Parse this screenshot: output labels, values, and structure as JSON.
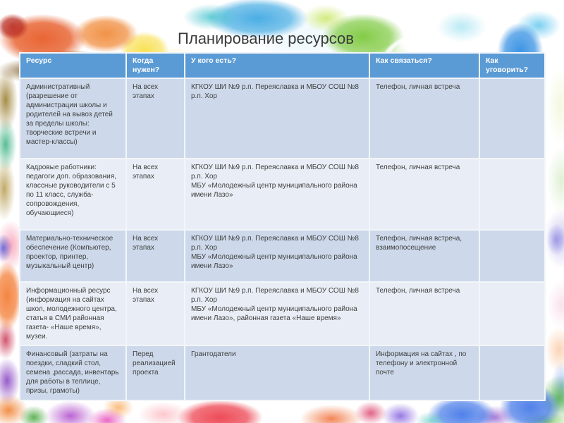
{
  "title": "Планирование ресурсов",
  "colors": {
    "header_bg": "#5b9bd5",
    "header_text": "#ffffff",
    "row_odd": "#cdd9ea",
    "row_even": "#e9eef6",
    "body_text": "#3f3f3f"
  },
  "table": {
    "columns": [
      "Ресурс",
      "Когда нужен?",
      "У кого есть?",
      "Как связаться?",
      "Как уговорить?"
    ],
    "rows": [
      {
        "resource": [
          "Административный (разрешение от администрации школы и родителей на вывоз детей за пределы школы: творческие встречи и мастер-классы)"
        ],
        "when": [
          "На всех этапах"
        ],
        "who": [
          "КГКОУ ШИ №9 р.п. Переяславка и МБОУ СОШ №8 р.п. Хор"
        ],
        "contact": [
          "Телефон, личная встреча"
        ],
        "persuade": []
      },
      {
        "resource": [
          "Кадровые работники: педагоги доп. образования, классные руководители с 5 по 11 класс, служба-сопровождения, обучающиеся)"
        ],
        "when": [
          "На всех этапах"
        ],
        "who": [
          "КГКОУ ШИ №9 р.п. Переяславка и МБОУ СОШ №8 р.п. Хор",
          "МБУ «Молодежный центр муниципального района имени Лазо»"
        ],
        "contact": [
          "Телефон, личная встреча"
        ],
        "persuade": []
      },
      {
        "resource": [
          "Материально-техническое обеспечение (Компьютер, проектор, принтер, музыкальный центр)"
        ],
        "when": [
          "На всех этапах"
        ],
        "who": [
          "КГКОУ ШИ №9 р.п. Переяславка и МБОУ СОШ №8 р.п. Хор",
          "МБУ «Молодежный центр муниципального района имени Лазо»"
        ],
        "contact": [
          "Телефон, личная встреча, взаимопосещение"
        ],
        "persuade": []
      },
      {
        "resource": [
          "Информационный ресурс (информация на сайтах школ, молодежного центра, статья в СМИ районная газета- «Наше время», музеи."
        ],
        "when": [
          "На всех этапах"
        ],
        "who": [
          "КГКОУ ШИ №9 р.п. Переяславка и МБОУ СОШ №8 р.п. Хор",
          "МБУ «Молодежный центр муниципального района имени Лазо», районная газета «Наше время»"
        ],
        "contact": [
          "Телефон, личная встреча"
        ],
        "persuade": []
      },
      {
        "resource": [
          "Финансовый (затраты на поездки, сладкий стол, семена ,рассада, инвентарь для работы в теплице, призы, грамоты)"
        ],
        "when": [
          "Перед реализацией проекта"
        ],
        "who": [
          "Грантодатели"
        ],
        "contact": [
          "Информация на сайтах , по телефону и электронной почте"
        ],
        "persuade": []
      }
    ]
  }
}
